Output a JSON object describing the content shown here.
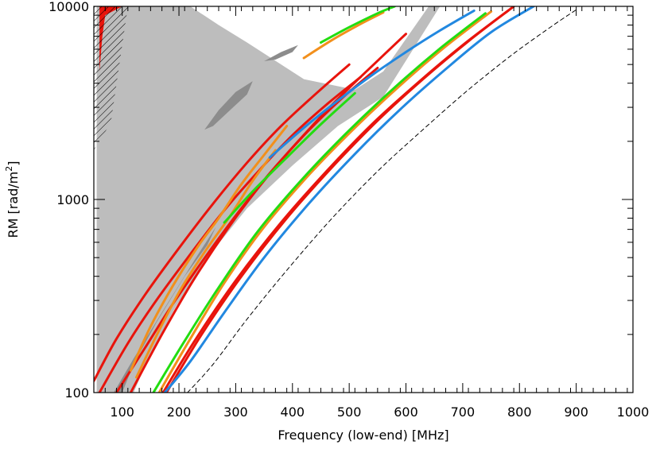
{
  "chart_data": {
    "type": "contour",
    "title": "",
    "xlabel": "Frequency (low-end) [MHz]",
    "ylabel_main": "RM [rad/m",
    "ylabel_sup": "2",
    "ylabel_close": "]",
    "xscale": "linear",
    "yscale": "log",
    "xlim": [
      50,
      1000
    ],
    "ylim": [
      100,
      10000
    ],
    "x_ticks": [
      100,
      200,
      300,
      400,
      500,
      600,
      700,
      800,
      900,
      1000
    ],
    "x_tick_labels": [
      "100",
      "200",
      "300",
      "400",
      "500",
      "600",
      "700",
      "800",
      "900",
      "1000"
    ],
    "y_ticks": [
      100,
      1000,
      10000
    ],
    "y_tick_labels": [
      "100",
      "1000",
      "10000"
    ],
    "grid": false,
    "colors": {
      "red": "#e8140c",
      "orange": "#f2901c",
      "green": "#22dd11",
      "blue": "#2288e0",
      "light_gray": "#bdbdbd",
      "dark_gray": "#8c8c8c",
      "dashed": "#000000"
    },
    "series": [
      {
        "name": "contour-red-1",
        "color": "red",
        "style": "solid",
        "points": [
          [
            50,
            115
          ],
          [
            90,
            190
          ],
          [
            140,
            320
          ],
          [
            200,
            560
          ],
          [
            260,
            950
          ],
          [
            320,
            1550
          ],
          [
            380,
            2400
          ],
          [
            440,
            3500
          ],
          [
            500,
            5000
          ]
        ]
      },
      {
        "name": "contour-red-2",
        "color": "red",
        "style": "solid",
        "points": [
          [
            60,
            100
          ],
          [
            110,
            180
          ],
          [
            160,
            300
          ],
          [
            220,
            520
          ],
          [
            280,
            880
          ],
          [
            340,
            1400
          ],
          [
            400,
            2150
          ],
          [
            460,
            3100
          ],
          [
            520,
            4300
          ]
        ]
      },
      {
        "name": "contour-red-3",
        "color": "red",
        "style": "solid",
        "points": [
          [
            90,
            100
          ],
          [
            140,
            170
          ],
          [
            190,
            290
          ],
          [
            250,
            520
          ],
          [
            310,
            900
          ],
          [
            370,
            1480
          ],
          [
            430,
            2300
          ],
          [
            490,
            3400
          ],
          [
            550,
            4800
          ]
        ]
      },
      {
        "name": "contour-red-4",
        "color": "red",
        "style": "solid",
        "points": [
          [
            115,
            100
          ],
          [
            170,
            200
          ],
          [
            225,
            380
          ],
          [
            285,
            700
          ],
          [
            345,
            1200
          ],
          [
            410,
            2000
          ],
          [
            475,
            3200
          ],
          [
            540,
            4900
          ],
          [
            600,
            7200
          ]
        ]
      },
      {
        "name": "contour-red-5",
        "color": "red",
        "style": "solid",
        "points": [
          [
            172,
            100
          ],
          [
            230,
            190
          ],
          [
            300,
            380
          ],
          [
            380,
            760
          ],
          [
            460,
            1400
          ],
          [
            540,
            2450
          ],
          [
            620,
            4000
          ],
          [
            700,
            6300
          ],
          [
            780,
            9500
          ]
        ]
      },
      {
        "name": "contour-red-6",
        "color": "red",
        "style": "solid",
        "points": [
          [
            178,
            100
          ],
          [
            240,
            200
          ],
          [
            310,
            400
          ],
          [
            390,
            800
          ],
          [
            470,
            1470
          ],
          [
            550,
            2560
          ],
          [
            630,
            4200
          ],
          [
            710,
            6600
          ],
          [
            790,
            10000
          ]
        ]
      },
      {
        "name": "contour-orange-1",
        "color": "orange",
        "style": "solid",
        "points": [
          [
            115,
            130
          ],
          [
            150,
            220
          ],
          [
            190,
            360
          ],
          [
            235,
            580
          ],
          [
            270,
            800
          ],
          [
            310,
            1200
          ],
          [
            350,
            1700
          ],
          [
            390,
            2400
          ]
        ]
      },
      {
        "name": "contour-orange-2",
        "color": "orange",
        "style": "solid",
        "points": [
          [
            125,
            120
          ],
          [
            165,
            210
          ],
          [
            205,
            350
          ],
          [
            250,
            560
          ],
          [
            290,
            820
          ],
          [
            330,
            1250
          ],
          [
            370,
            1800
          ]
        ]
      },
      {
        "name": "contour-orange-3",
        "color": "orange",
        "style": "solid",
        "points": [
          [
            165,
            100
          ],
          [
            220,
            190
          ],
          [
            280,
            370
          ],
          [
            350,
            720
          ],
          [
            430,
            1350
          ],
          [
            510,
            2350
          ],
          [
            590,
            3900
          ],
          [
            670,
            6200
          ],
          [
            750,
            9400
          ]
        ]
      },
      {
        "name": "contour-orange-4",
        "color": "orange",
        "style": "solid",
        "points": [
          [
            420,
            5400
          ],
          [
            470,
            6700
          ],
          [
            520,
            8100
          ],
          [
            560,
            9300
          ]
        ]
      },
      {
        "name": "contour-green-1",
        "color": "green",
        "style": "solid",
        "points": [
          [
            155,
            100
          ],
          [
            210,
            185
          ],
          [
            270,
            350
          ],
          [
            340,
            690
          ],
          [
            420,
            1300
          ],
          [
            500,
            2280
          ],
          [
            580,
            3800
          ],
          [
            660,
            6050
          ],
          [
            740,
            9200
          ]
        ]
      },
      {
        "name": "contour-green-2",
        "color": "green",
        "style": "solid",
        "points": [
          [
            280,
            760
          ],
          [
            330,
            1100
          ],
          [
            390,
            1650
          ],
          [
            450,
            2450
          ],
          [
            510,
            3550
          ]
        ]
      },
      {
        "name": "contour-green-3",
        "color": "green",
        "style": "solid",
        "points": [
          [
            450,
            6500
          ],
          [
            500,
            7800
          ],
          [
            550,
            9200
          ],
          [
            580,
            10000
          ]
        ]
      },
      {
        "name": "contour-blue-1",
        "color": "blue",
        "style": "solid",
        "points": [
          [
            175,
            100
          ],
          [
            220,
            145
          ],
          [
            280,
            260
          ],
          [
            350,
            500
          ],
          [
            430,
            960
          ],
          [
            510,
            1720
          ],
          [
            590,
            2930
          ],
          [
            670,
            4730
          ],
          [
            750,
            7350
          ],
          [
            825,
            10000
          ]
        ]
      },
      {
        "name": "contour-blue-2",
        "color": "blue",
        "style": "solid",
        "points": [
          [
            360,
            1650
          ],
          [
            420,
            2350
          ],
          [
            480,
            3250
          ],
          [
            540,
            4400
          ],
          [
            600,
            5800
          ],
          [
            660,
            7500
          ],
          [
            720,
            9500
          ]
        ]
      },
      {
        "name": "contour-dashed",
        "color": "dashed",
        "style": "dashed",
        "points": [
          [
            215,
            100
          ],
          [
            260,
            140
          ],
          [
            320,
            240
          ],
          [
            390,
            430
          ],
          [
            470,
            800
          ],
          [
            550,
            1400
          ],
          [
            630,
            2300
          ],
          [
            710,
            3700
          ],
          [
            790,
            5700
          ],
          [
            860,
            8000
          ],
          [
            900,
            9600
          ]
        ]
      }
    ],
    "regions": [
      {
        "name": "region-light-gray",
        "color": "light_gray",
        "points": [
          [
            55,
            100
          ],
          [
            55,
            10000
          ],
          [
            220,
            10000
          ],
          [
            270,
            8000
          ],
          [
            320,
            6500
          ],
          [
            420,
            4200
          ],
          [
            510,
            3700
          ],
          [
            560,
            4600
          ],
          [
            640,
            10000
          ],
          [
            660,
            10000
          ],
          [
            560,
            3400
          ],
          [
            480,
            2400
          ],
          [
            400,
            1500
          ],
          [
            320,
            900
          ],
          [
            250,
            500
          ],
          [
            195,
            280
          ],
          [
            150,
            160
          ],
          [
            120,
            100
          ]
        ]
      },
      {
        "name": "region-dark-gray-1",
        "color": "dark_gray",
        "points": [
          [
            85,
            100
          ],
          [
            120,
            150
          ],
          [
            170,
            260
          ],
          [
            230,
            500
          ],
          [
            265,
            720
          ],
          [
            250,
            580
          ],
          [
            210,
            400
          ],
          [
            160,
            230
          ],
          [
            120,
            140
          ],
          [
            100,
            100
          ]
        ]
      },
      {
        "name": "region-dark-gray-2",
        "color": "dark_gray",
        "points": [
          [
            245,
            2300
          ],
          [
            270,
            2900
          ],
          [
            300,
            3600
          ],
          [
            330,
            4100
          ],
          [
            320,
            3500
          ],
          [
            290,
            2900
          ],
          [
            260,
            2400
          ]
        ]
      },
      {
        "name": "region-dark-gray-3",
        "color": "dark_gray",
        "points": [
          [
            350,
            5200
          ],
          [
            380,
            5800
          ],
          [
            410,
            6300
          ],
          [
            400,
            5800
          ],
          [
            370,
            5300
          ]
        ]
      },
      {
        "name": "region-red-blobs",
        "color": "red",
        "points": [
          [
            60,
            4600
          ],
          [
            60,
            10000
          ],
          [
            100,
            10000
          ],
          [
            70,
            9000
          ],
          [
            65,
            7000
          ]
        ]
      }
    ],
    "hatched_region": {
      "name": "hatched-region",
      "points": [
        [
          50,
          1800
        ],
        [
          50,
          10000
        ],
        [
          110,
          10000
        ],
        [
          95,
          5000
        ],
        [
          80,
          2500
        ]
      ]
    }
  }
}
